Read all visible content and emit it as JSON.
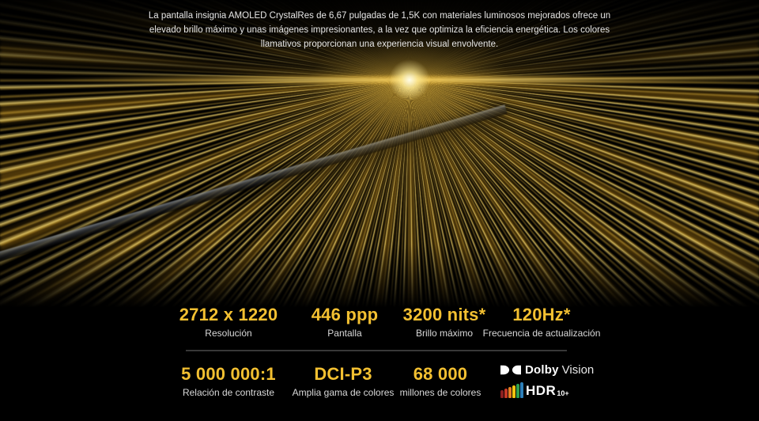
{
  "description": "La pantalla insignia AMOLED CrystalRes de 6,67 pulgadas de 1,5K con materiales luminosos mejorados ofrece un elevado brillo máximo y unas imágenes impresionantes, a la vez que optimiza la eficiencia energética. Los colores llamativos proporcionan una experiencia visual envolvente.",
  "colors": {
    "background": "#000000",
    "accent_gold": "#f3c031",
    "label_gray": "#d9d9d9",
    "description_gray": "#e6e6e6",
    "divider_gray": "#383838"
  },
  "specs_row1": [
    {
      "value": "2712 x 1220",
      "label": "Resolución"
    },
    {
      "value": "446 ppp",
      "label": "Pantalla"
    },
    {
      "value": "3200 nits*",
      "label": "Brillo máximo"
    },
    {
      "value": "120Hz*",
      "label": "Frecuencia de actualización"
    }
  ],
  "specs_row2": [
    {
      "value": "5 000 000:1",
      "label": "Relación de contraste"
    },
    {
      "value": "DCI-P3",
      "label": "Amplia gama de colores"
    },
    {
      "value": "68 000",
      "label": "millones de colores"
    }
  ],
  "logos": {
    "dolby_bold": "Dolby",
    "dolby_light": "Vision",
    "hdr_text": "HDR",
    "hdr_suffix": "10+",
    "hdr_bar_colors": [
      "#8b2020",
      "#c63a26",
      "#e67e22",
      "#f1c40f",
      "#2e9e4f",
      "#2c7fb8"
    ]
  }
}
